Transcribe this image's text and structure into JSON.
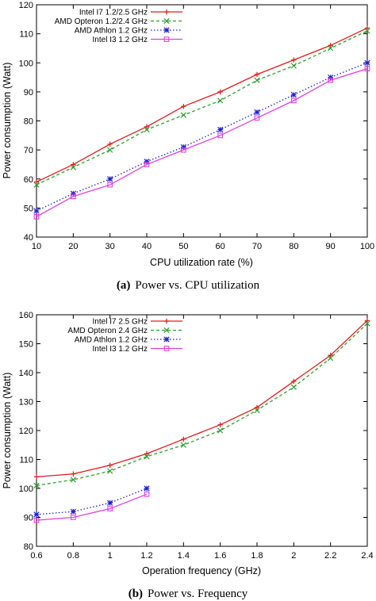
{
  "chart_data": [
    {
      "type": "line",
      "caption_tag": "(a)",
      "caption_text": "Power vs. CPU utilization",
      "xlabel": "CPU utilization rate (%)",
      "ylabel": "Power consumption (Watt)",
      "xlim": [
        10,
        100
      ],
      "ylim": [
        40,
        120
      ],
      "xticks": [
        10,
        20,
        30,
        40,
        50,
        60,
        70,
        80,
        90,
        100
      ],
      "xtick_labels": [
        "10",
        "20",
        "30",
        "40",
        "50",
        "60",
        "70",
        "80",
        "90",
        "100"
      ],
      "yticks": [
        40,
        50,
        60,
        70,
        80,
        90,
        100,
        110,
        120
      ],
      "legend_position": "top-left",
      "grid": false,
      "series": [
        {
          "name": "Intel I7 1.2/2.5 GHz",
          "color": "#e41a1c",
          "marker": "plus",
          "dash": "solid",
          "x": [
            10,
            20,
            30,
            40,
            50,
            60,
            70,
            80,
            90,
            100
          ],
          "y": [
            59,
            65,
            72,
            78,
            85,
            90,
            96,
            101,
            106,
            112
          ]
        },
        {
          "name": "AMD Opteron 1.2/2.4 GHz",
          "color": "#2ca02c",
          "marker": "cross",
          "dash": "dashed",
          "x": [
            10,
            20,
            30,
            40,
            50,
            60,
            70,
            80,
            90,
            100
          ],
          "y": [
            58,
            64,
            70,
            77,
            82,
            87,
            94,
            99,
            105,
            111
          ]
        },
        {
          "name": "AMD Athlon 1.2 GHz",
          "color": "#1f1fcf",
          "marker": "star",
          "dash": "dotted",
          "x": [
            10,
            20,
            30,
            40,
            50,
            60,
            70,
            80,
            90,
            100
          ],
          "y": [
            49,
            55,
            60,
            66,
            71,
            77,
            83,
            89,
            95,
            100
          ]
        },
        {
          "name": "Intel I3 1.2 GHz",
          "color": "#e040e0",
          "marker": "square",
          "dash": "solid",
          "x": [
            10,
            20,
            30,
            40,
            50,
            60,
            70,
            80,
            90,
            100
          ],
          "y": [
            47,
            54,
            58,
            65,
            70,
            75,
            81,
            87,
            94,
            98
          ]
        }
      ]
    },
    {
      "type": "line",
      "caption_tag": "(b)",
      "caption_text": "Power vs. Frequency",
      "xlabel": "Operation frequency (GHz)",
      "ylabel": "Power consumption (Watt)",
      "xlim": [
        0.6,
        2.4
      ],
      "ylim": [
        80,
        160
      ],
      "xticks": [
        0.6,
        0.8,
        1.0,
        1.2,
        1.4,
        1.6,
        1.8,
        2.0,
        2.2,
        2.4
      ],
      "xtick_labels": [
        "0.6",
        "0.8",
        "1",
        "1.2",
        "1.4",
        "1.6",
        "1.8",
        "2",
        "2.2",
        "2.4"
      ],
      "yticks": [
        80,
        90,
        100,
        110,
        120,
        130,
        140,
        150,
        160
      ],
      "legend_position": "top-left",
      "grid": false,
      "series": [
        {
          "name": "Intel I7 2.5 GHz",
          "color": "#e41a1c",
          "marker": "plus",
          "dash": "solid",
          "x": [
            0.6,
            0.8,
            1.0,
            1.2,
            1.4,
            1.6,
            1.8,
            2.0,
            2.2,
            2.4
          ],
          "y": [
            104,
            105,
            108,
            112,
            117,
            122,
            128,
            137,
            146,
            158
          ]
        },
        {
          "name": "AMD Opteron 2.4 GHz",
          "color": "#2ca02c",
          "marker": "cross",
          "dash": "dashed",
          "x": [
            0.6,
            0.8,
            1.0,
            1.2,
            1.4,
            1.6,
            1.8,
            2.0,
            2.2,
            2.4
          ],
          "y": [
            101,
            103,
            106,
            111,
            115,
            120,
            127,
            135,
            145,
            157
          ]
        },
        {
          "name": "AMD Athlon 1.2 GHz",
          "color": "#1f1fcf",
          "marker": "star",
          "dash": "dotted",
          "x": [
            0.6,
            0.8,
            1.0,
            1.2
          ],
          "y": [
            91,
            92,
            95,
            100
          ]
        },
        {
          "name": "Intel I3 1.2 GHz",
          "color": "#e040e0",
          "marker": "square",
          "dash": "solid",
          "x": [
            0.6,
            0.8,
            1.0,
            1.2
          ],
          "y": [
            89,
            90,
            93,
            98
          ]
        }
      ]
    }
  ]
}
